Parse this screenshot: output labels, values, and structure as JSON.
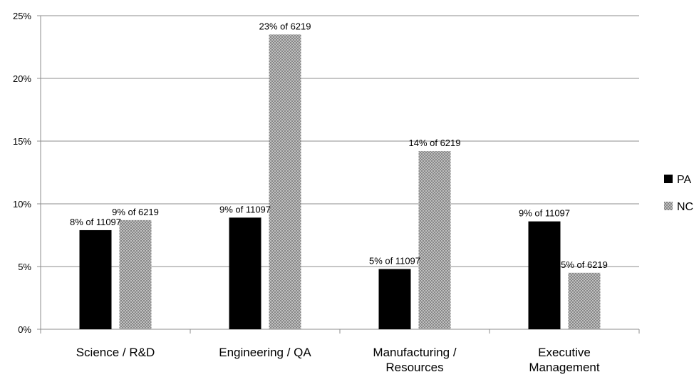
{
  "chart_data": {
    "type": "bar",
    "title": "",
    "xlabel": "",
    "ylabel": "",
    "ylim": [
      0,
      25
    ],
    "yticks": [
      0,
      5,
      10,
      15,
      20,
      25
    ],
    "ytick_labels": [
      "0%",
      "5%",
      "10%",
      "15%",
      "20%",
      "25%"
    ],
    "grid": true,
    "legend_position": "right",
    "categories": [
      [
        "Science / R&D"
      ],
      [
        "Engineering / QA"
      ],
      [
        "Manufacturing /",
        "Resources"
      ],
      [
        "Executive",
        "Management"
      ]
    ],
    "series": [
      {
        "name": "PA",
        "color": "#000000",
        "pattern": "solid",
        "values": [
          7.9,
          8.9,
          4.8,
          8.6
        ],
        "labels": [
          "8% of 11097",
          "9% of 11097",
          "5% of 11097",
          "9% of 11097"
        ]
      },
      {
        "name": "NC",
        "color": "#a8a8a8",
        "pattern": "crosshatch",
        "values": [
          8.7,
          23.5,
          14.2,
          4.5
        ],
        "labels": [
          "9% of 6219",
          "23% of 6219",
          "14% of 6219",
          "5% of 6219"
        ]
      }
    ]
  }
}
